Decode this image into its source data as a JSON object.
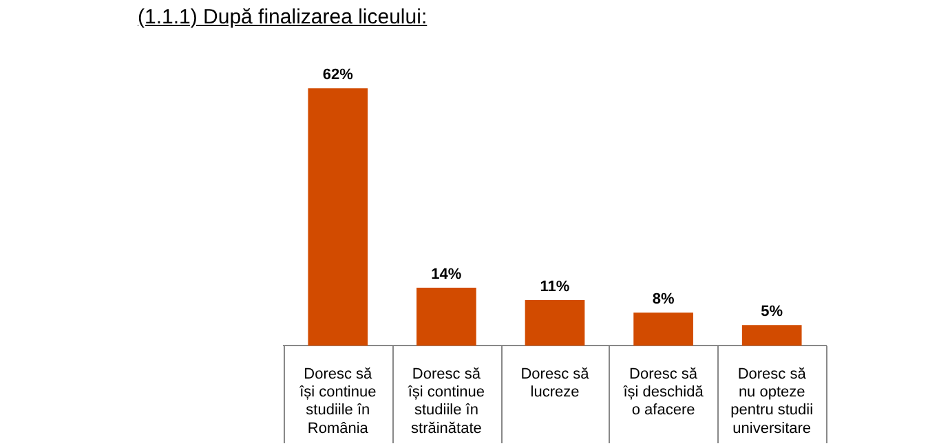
{
  "chart_data": {
    "type": "bar",
    "title": "(1.1.1) După finalizarea liceului:",
    "categories": [
      "Doresc să își continue studiile în România",
      "Doresc să își continue studiile în străinătate",
      "Doresc să lucreze",
      "Doresc să își deschidă o afacere",
      "Doresc să nu opteze pentru studii universitare"
    ],
    "values": [
      62,
      14,
      11,
      8,
      5
    ],
    "value_labels": [
      "62%",
      "14%",
      "11%",
      "8%",
      "5%"
    ],
    "color": "#d24b00"
  }
}
